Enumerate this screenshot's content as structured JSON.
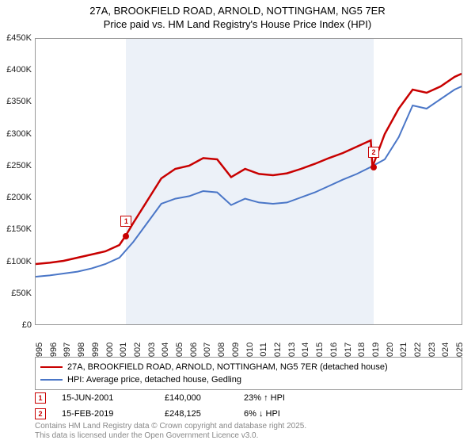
{
  "title": {
    "line1": "27A, BROOKFIELD ROAD, ARNOLD, NOTTINGHAM, NG5 7ER",
    "line2": "Price paid vs. HM Land Registry's House Price Index (HPI)"
  },
  "title_fontsize": 13,
  "chart": {
    "type": "line",
    "background_color": "#ffffff",
    "border_color": "#999999",
    "shaded_color": "rgba(200,215,235,0.35)",
    "x": {
      "min": 1995,
      "max": 2025.5,
      "ticks": [
        1995,
        1996,
        1997,
        1998,
        1999,
        2000,
        2001,
        2002,
        2003,
        2004,
        2005,
        2006,
        2007,
        2008,
        2009,
        2010,
        2011,
        2012,
        2013,
        2014,
        2015,
        2016,
        2017,
        2018,
        2019,
        2020,
        2021,
        2022,
        2023,
        2024,
        2025
      ],
      "label_fontsize": 11
    },
    "y": {
      "min": 0,
      "max": 450000,
      "ticks": [
        0,
        50000,
        100000,
        150000,
        200000,
        250000,
        300000,
        350000,
        400000,
        450000
      ],
      "tick_labels": [
        "£0",
        "£50K",
        "£100K",
        "£150K",
        "£200K",
        "£250K",
        "£300K",
        "£350K",
        "£400K",
        "£450K"
      ],
      "label_fontsize": 11
    },
    "series": [
      {
        "id": "property",
        "label": "27A, BROOKFIELD ROAD, ARNOLD, NOTTINGHAM, NG5 7ER (detached house)",
        "color": "#c80000",
        "line_width": 2.5,
        "points": [
          [
            1995,
            95000
          ],
          [
            1996,
            97000
          ],
          [
            1997,
            100000
          ],
          [
            1998,
            105000
          ],
          [
            1999,
            110000
          ],
          [
            2000,
            115000
          ],
          [
            2001,
            125000
          ],
          [
            2001.46,
            140000
          ],
          [
            2002,
            160000
          ],
          [
            2003,
            195000
          ],
          [
            2004,
            230000
          ],
          [
            2005,
            245000
          ],
          [
            2006,
            250000
          ],
          [
            2007,
            262000
          ],
          [
            2008,
            260000
          ],
          [
            2009,
            232000
          ],
          [
            2010,
            245000
          ],
          [
            2011,
            237000
          ],
          [
            2012,
            235000
          ],
          [
            2013,
            238000
          ],
          [
            2014,
            245000
          ],
          [
            2015,
            253000
          ],
          [
            2016,
            262000
          ],
          [
            2017,
            270000
          ],
          [
            2018,
            280000
          ],
          [
            2019,
            290000
          ],
          [
            2019.12,
            248125
          ],
          [
            2020,
            300000
          ],
          [
            2021,
            340000
          ],
          [
            2022,
            370000
          ],
          [
            2023,
            365000
          ],
          [
            2024,
            375000
          ],
          [
            2025,
            390000
          ],
          [
            2025.5,
            395000
          ]
        ]
      },
      {
        "id": "hpi",
        "label": "HPI: Average price, detached house, Gedling",
        "color": "#4a76c7",
        "line_width": 2,
        "points": [
          [
            1995,
            75000
          ],
          [
            1996,
            77000
          ],
          [
            1997,
            80000
          ],
          [
            1998,
            83000
          ],
          [
            1999,
            88000
          ],
          [
            2000,
            95000
          ],
          [
            2001,
            105000
          ],
          [
            2002,
            130000
          ],
          [
            2003,
            160000
          ],
          [
            2004,
            190000
          ],
          [
            2005,
            198000
          ],
          [
            2006,
            202000
          ],
          [
            2007,
            210000
          ],
          [
            2008,
            208000
          ],
          [
            2009,
            188000
          ],
          [
            2010,
            198000
          ],
          [
            2011,
            192000
          ],
          [
            2012,
            190000
          ],
          [
            2013,
            192000
          ],
          [
            2014,
            200000
          ],
          [
            2015,
            208000
          ],
          [
            2016,
            218000
          ],
          [
            2017,
            228000
          ],
          [
            2018,
            237000
          ],
          [
            2019,
            248000
          ],
          [
            2020,
            260000
          ],
          [
            2021,
            295000
          ],
          [
            2022,
            345000
          ],
          [
            2023,
            340000
          ],
          [
            2024,
            355000
          ],
          [
            2025,
            370000
          ],
          [
            2025.5,
            375000
          ]
        ]
      }
    ],
    "shaded_region": {
      "x_start": 2001.46,
      "x_end": 2019.12
    },
    "markers": [
      {
        "n": 1,
        "x": 2001.46,
        "y": 140000,
        "color": "#c80000"
      },
      {
        "n": 2,
        "x": 2019.12,
        "y": 248125,
        "color": "#c80000"
      }
    ]
  },
  "legend": {
    "border_color": "#999999",
    "fontsize": 11
  },
  "transactions": [
    {
      "n": 1,
      "color": "#c80000",
      "date": "15-JUN-2001",
      "price": "£140,000",
      "diff": "23% ↑ HPI"
    },
    {
      "n": 2,
      "color": "#c80000",
      "date": "15-FEB-2019",
      "price": "£248,125",
      "diff": "6% ↓ HPI"
    }
  ],
  "footnote": {
    "line1": "Contains HM Land Registry data © Crown copyright and database right 2025.",
    "line2": "This data is licensed under the Open Government Licence v3.0.",
    "color": "#888888",
    "fontsize": 10
  }
}
